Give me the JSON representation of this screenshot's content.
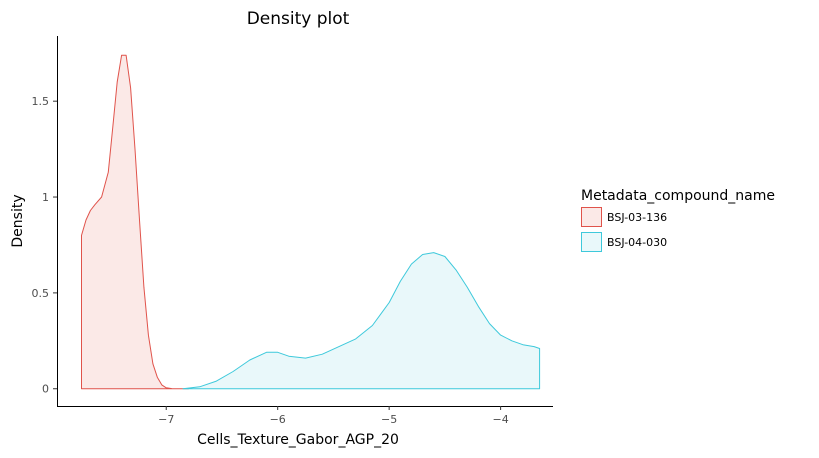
{
  "chart_data": {
    "type": "area",
    "title": "Density plot",
    "xlabel": "Cells_Texture_Gabor_AGP_20",
    "ylabel": "Density",
    "xlim": [
      -7.98,
      -3.53
    ],
    "ylim": [
      -0.09,
      1.84
    ],
    "x_ticks": [
      -7,
      -6,
      -5,
      -4
    ],
    "x_tick_labels": [
      "−7",
      "−6",
      "−5",
      "−4"
    ],
    "y_ticks": [
      0,
      0.5,
      1,
      1.5
    ],
    "y_tick_labels": [
      "0",
      "0.5",
      "1",
      "1.5"
    ],
    "grid": false,
    "legend": {
      "title": "Metadata_compound_name",
      "position": "right"
    },
    "series": [
      {
        "name": "BSJ-03-136",
        "color": "#e0534b",
        "fill": "#fbe9e7",
        "x": [
          -7.76,
          -7.72,
          -7.68,
          -7.64,
          -7.58,
          -7.52,
          -7.48,
          -7.44,
          -7.4,
          -7.36,
          -7.32,
          -7.28,
          -7.24,
          -7.2,
          -7.16,
          -7.12,
          -7.08,
          -7.04,
          -7.0,
          -6.95,
          -6.9,
          -6.85,
          -6.8
        ],
        "values": [
          0.8,
          0.88,
          0.93,
          0.96,
          1.0,
          1.13,
          1.36,
          1.6,
          1.74,
          1.74,
          1.57,
          1.25,
          0.88,
          0.53,
          0.28,
          0.13,
          0.06,
          0.02,
          0.005,
          0.001,
          0,
          0,
          0
        ]
      },
      {
        "name": "BSJ-04-030",
        "color": "#3ec9db",
        "fill": "#e9f8fa",
        "x": [
          -6.85,
          -6.7,
          -6.55,
          -6.4,
          -6.25,
          -6.1,
          -6.0,
          -5.9,
          -5.75,
          -5.6,
          -5.45,
          -5.3,
          -5.15,
          -5.0,
          -4.9,
          -4.8,
          -4.7,
          -4.6,
          -4.5,
          -4.4,
          -4.3,
          -4.2,
          -4.1,
          -4.0,
          -3.9,
          -3.8,
          -3.7,
          -3.65
        ],
        "values": [
          0.0,
          0.01,
          0.04,
          0.09,
          0.15,
          0.19,
          0.19,
          0.17,
          0.16,
          0.18,
          0.22,
          0.26,
          0.33,
          0.45,
          0.56,
          0.65,
          0.7,
          0.71,
          0.69,
          0.62,
          0.53,
          0.43,
          0.34,
          0.28,
          0.25,
          0.23,
          0.22,
          0.21
        ]
      }
    ]
  }
}
